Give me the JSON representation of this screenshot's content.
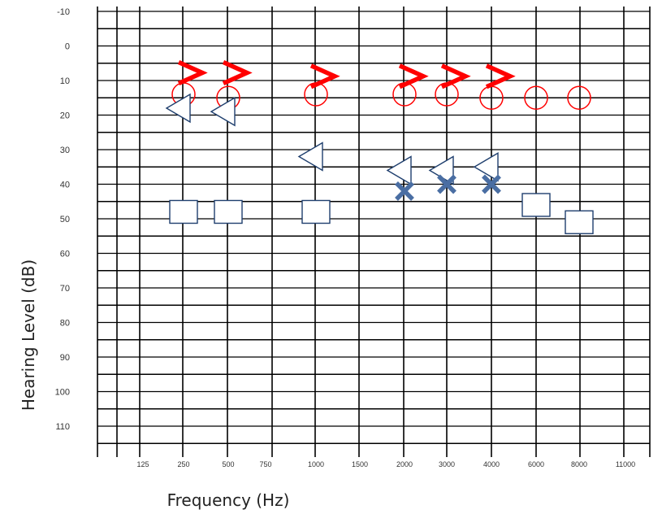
{
  "chart_data": {
    "type": "scatter",
    "title": "",
    "xlabel": "Frequency (Hz)",
    "ylabel": "Hearing Level (dB)",
    "x_categories": [
      "125",
      "250",
      "500",
      "750",
      "1000",
      "1500",
      "2000",
      "3000",
      "4000",
      "6000",
      "8000",
      "11000"
    ],
    "y_ticks": [
      "-10",
      "0",
      "10",
      "20",
      "30",
      "40",
      "50",
      "60",
      "70",
      "80",
      "90",
      "100",
      "110"
    ],
    "ylim": [
      -10,
      120
    ],
    "y_inverted": true,
    "grid": true,
    "series": [
      {
        "marker": "circle",
        "color": "#ff0000",
        "points": [
          {
            "x": "250",
            "y": 14
          },
          {
            "x": "500",
            "y": 15
          },
          {
            "x": "1000",
            "y": 14
          },
          {
            "x": "2000",
            "y": 14
          },
          {
            "x": "3000",
            "y": 14
          },
          {
            "x": "4000",
            "y": 15
          },
          {
            "x": "6000",
            "y": 15
          },
          {
            "x": "8000",
            "y": 15
          }
        ]
      },
      {
        "marker": "chevron-right",
        "color": "#ff0000",
        "points": [
          {
            "x": "250",
            "y": 8
          },
          {
            "x": "500",
            "y": 8
          },
          {
            "x": "1000",
            "y": 9
          },
          {
            "x": "2000",
            "y": 9
          },
          {
            "x": "3000",
            "y": 9
          },
          {
            "x": "4000",
            "y": 9
          }
        ]
      },
      {
        "marker": "triangle-left",
        "color": "#1f3f6e",
        "points": [
          {
            "x": "250",
            "y": 18
          },
          {
            "x": "500",
            "y": 19
          },
          {
            "x": "1000",
            "y": 32
          },
          {
            "x": "2000",
            "y": 36
          },
          {
            "x": "3000",
            "y": 36
          },
          {
            "x": "4000",
            "y": 35
          }
        ]
      },
      {
        "marker": "x",
        "color": "#4a6ea3",
        "points": [
          {
            "x": "2000",
            "y": 42
          },
          {
            "x": "3000",
            "y": 40
          },
          {
            "x": "4000",
            "y": 40
          }
        ]
      },
      {
        "marker": "square",
        "color": "#1f3f6e",
        "points": [
          {
            "x": "250",
            "y": 48
          },
          {
            "x": "500",
            "y": 48
          },
          {
            "x": "1000",
            "y": 48
          },
          {
            "x": "6000",
            "y": 46
          },
          {
            "x": "8000",
            "y": 51
          }
        ]
      }
    ]
  }
}
